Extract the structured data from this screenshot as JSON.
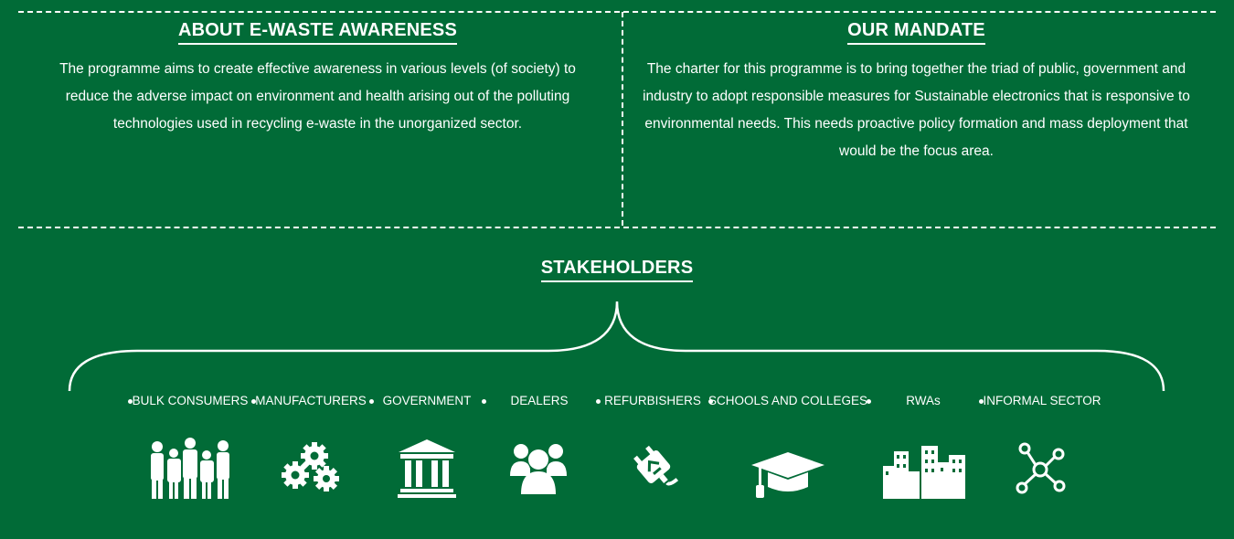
{
  "about": {
    "title": "ABOUT E-WASTE AWARENESS",
    "body": "The programme aims to create effective awareness in various levels (of society) to reduce the adverse impact on environment and health arising out of the polluting technologies used in recycling e-waste in the unorganized sector."
  },
  "mandate": {
    "title": "OUR MANDATE",
    "body": "The charter for this programme is to bring together the triad of public, government and industry to adopt responsible measures for Sustainable electronics that is responsive to environmental needs. This needs proactive policy formation and mass deployment that would be the focus area."
  },
  "stakeholders": {
    "title": "STAKEHOLDERS",
    "items": [
      {
        "label": "BULK CONSUMERS",
        "icon": "people-group-icon"
      },
      {
        "label": "MANUFACTURERS",
        "icon": "gears-icon"
      },
      {
        "label": "GOVERNMENT",
        "icon": "government-building-icon"
      },
      {
        "label": "DEALERS",
        "icon": "users-group-icon"
      },
      {
        "label": "REFURBISHERS",
        "icon": "recycle-plug-icon"
      },
      {
        "label": "SCHOOLS AND COLLEGES",
        "icon": "graduation-cap-icon"
      },
      {
        "label": "RWAs",
        "icon": "city-buildings-icon"
      },
      {
        "label": "INFORMAL SECTOR",
        "icon": "network-icon"
      }
    ]
  },
  "colors": {
    "background": "#016b37",
    "foreground": "#ffffff"
  }
}
